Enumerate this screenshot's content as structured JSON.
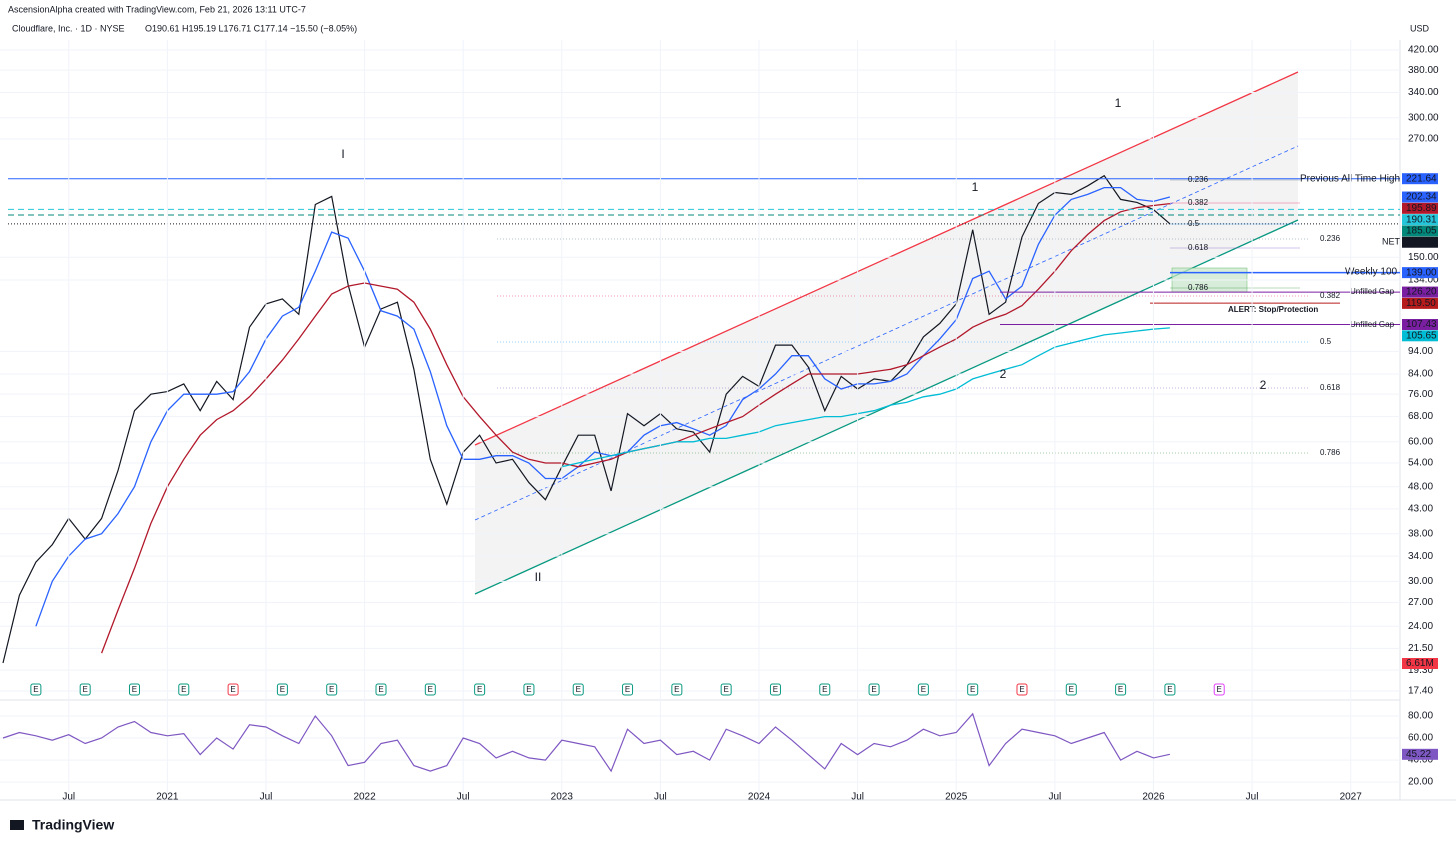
{
  "header": {
    "attribution": "AscensionAlpha created with TradingView.com, Feb 21, 2026 13:11 UTC-7",
    "symbol_line": "Cloudflare, Inc. · 1D · NYSE",
    "ohlc": "O190.61 H195.19 L176.71 C177.14 −15.50 (−8.05%)",
    "currency": "USD"
  },
  "brand": "TradingView",
  "chart_data": [
    {
      "type": "line",
      "log_scale": true,
      "x": [
        "2020-03",
        "2020-04",
        "2020-05",
        "2020-06",
        "2020-07",
        "2020-08",
        "2020-09",
        "2020-10",
        "2020-11",
        "2020-12",
        "2021-01",
        "2021-02",
        "2021-03",
        "2021-04",
        "2021-05",
        "2021-06",
        "2021-07",
        "2021-08",
        "2021-09",
        "2021-10",
        "2021-11",
        "2021-12",
        "2022-01",
        "2022-02",
        "2022-03",
        "2022-04",
        "2022-05",
        "2022-06",
        "2022-07",
        "2022-08",
        "2022-09",
        "2022-10",
        "2022-11",
        "2022-12",
        "2023-01",
        "2023-02",
        "2023-03",
        "2023-04",
        "2023-05",
        "2023-06",
        "2023-07",
        "2023-08",
        "2023-09",
        "2023-10",
        "2023-11",
        "2023-12",
        "2024-01",
        "2024-02",
        "2024-03",
        "2024-04",
        "2024-05",
        "2024-06",
        "2024-07",
        "2024-08",
        "2024-09",
        "2024-10",
        "2024-11",
        "2024-12",
        "2025-01",
        "2025-02",
        "2025-03",
        "2025-04",
        "2025-05",
        "2025-06",
        "2025-07",
        "2025-08",
        "2025-09",
        "2025-10",
        "2025-11",
        "2025-12",
        "2026-01",
        "2026-02"
      ],
      "xlim": [
        "2020-03",
        "2027-04"
      ],
      "ylim": [
        17.4,
        420
      ],
      "yticks": [
        {
          "value": 420,
          "label": "420.00"
        },
        {
          "value": 380,
          "label": "380.00"
        },
        {
          "value": 340,
          "label": "340.00"
        },
        {
          "value": 300,
          "label": "300.00"
        },
        {
          "value": 270,
          "label": "270.00"
        },
        {
          "value": 150,
          "label": "150.00"
        },
        {
          "value": 134,
          "label": "134.00"
        },
        {
          "value": 94,
          "label": "94.00"
        },
        {
          "value": 84,
          "label": "84.00"
        },
        {
          "value": 76,
          "label": "76.00"
        },
        {
          "value": 68,
          "label": "68.00"
        },
        {
          "value": 60,
          "label": "60.00"
        },
        {
          "value": 54,
          "label": "54.00"
        },
        {
          "value": 48,
          "label": "48.00"
        },
        {
          "value": 43,
          "label": "43.00"
        },
        {
          "value": 38,
          "label": "38.00"
        },
        {
          "value": 34,
          "label": "34.00"
        },
        {
          "value": 30,
          "label": "30.00"
        },
        {
          "value": 27,
          "label": "27.00"
        },
        {
          "value": 24,
          "label": "24.00"
        },
        {
          "value": 21.5,
          "label": "21.50"
        },
        {
          "value": 19.3,
          "label": "19.30"
        },
        {
          "value": 17.4,
          "label": "17.40"
        }
      ],
      "series": [
        {
          "name": "NET",
          "color": "#131722",
          "values": [
            20,
            28,
            33,
            36,
            41,
            37,
            41,
            52,
            70,
            76,
            77,
            80,
            70,
            81,
            74,
            106,
            119,
            122,
            113,
            195,
            203,
            131,
            96,
            116,
            120,
            86,
            55,
            44,
            57,
            62,
            54,
            55,
            49,
            45,
            53,
            62,
            62,
            47,
            69,
            65,
            69,
            64,
            63,
            57,
            76,
            83,
            79,
            97,
            97,
            87,
            70,
            83,
            78,
            82,
            81,
            88,
            101,
            108,
            119,
            172,
            113,
            120,
            166,
            196,
            207,
            205,
            214,
            225,
            200,
            197,
            190,
            177.14
          ]
        },
        {
          "color": "#2962ff",
          "values": [
            null,
            null,
            24,
            30,
            34,
            37,
            38,
            42,
            48,
            60,
            70,
            76,
            76,
            76,
            77,
            85,
            100,
            112,
            117,
            140,
            170,
            165,
            140,
            115,
            112,
            105,
            85,
            65,
            55,
            55,
            56,
            56,
            54,
            50,
            50,
            53,
            57,
            56,
            57,
            62,
            65,
            66,
            64,
            62,
            65,
            74,
            78,
            84,
            92,
            92,
            82,
            78,
            80,
            80,
            81,
            84,
            92,
            100,
            110,
            135,
            140,
            122,
            130,
            160,
            185,
            200,
            205,
            212,
            212,
            200,
            198,
            202.34
          ]
        },
        {
          "color": "#b2182b",
          "values": [
            null,
            null,
            null,
            null,
            null,
            null,
            21,
            26,
            32,
            40,
            48,
            55,
            62,
            67,
            70,
            75,
            82,
            90,
            100,
            112,
            125,
            130,
            132,
            130,
            128,
            120,
            105,
            88,
            75,
            68,
            62,
            57,
            55,
            54,
            54,
            53,
            54,
            55,
            57,
            58,
            59,
            60,
            62,
            64,
            66,
            68,
            72,
            76,
            80,
            84,
            84,
            84,
            84,
            85,
            86,
            88,
            92,
            96,
            100,
            106,
            110,
            113,
            118,
            128,
            140,
            155,
            168,
            180,
            188,
            192,
            194,
            195.89
          ]
        },
        {
          "color": "#00bcd4",
          "values": [
            null,
            null,
            null,
            null,
            null,
            null,
            null,
            null,
            null,
            null,
            null,
            null,
            null,
            null,
            null,
            null,
            null,
            null,
            null,
            null,
            null,
            null,
            null,
            null,
            null,
            null,
            null,
            null,
            null,
            null,
            null,
            null,
            null,
            null,
            53,
            54,
            55,
            56,
            57,
            58,
            59,
            60,
            60,
            61,
            61,
            62,
            63,
            65,
            66,
            67,
            68,
            68,
            69,
            70,
            72,
            73,
            75,
            76,
            78,
            82,
            84,
            86,
            88,
            92,
            96,
            98,
            100,
            102,
            103,
            104,
            105,
            105.65
          ]
        }
      ],
      "levels": [
        {
          "label": "Previous All Time High",
          "price": 221.64,
          "color": "#2962ff"
        },
        {
          "label": "Weekly 100",
          "price": {
            "value": 139,
            "label": "139.00"
          },
          "color": "#2962ff"
        },
        {
          "label": "Unfilled Gap",
          "price": {
            "value": 126.2,
            "label": "126.20"
          },
          "color": "#7b1fa2"
        },
        {
          "label": "ALERT: Stop/Protection",
          "price": {
            "value": 119.5,
            "label": "119.50"
          },
          "color": "#b71c1c"
        },
        {
          "label": "Unfilled Gap",
          "price": {
            "value": 107.43,
            "label": "107.43"
          },
          "color": "#7b1fa2"
        }
      ],
      "price_tags": [
        {
          "value": 190.31,
          "color": "#26c6da"
        },
        {
          "value": 185.05,
          "color": "#00897b"
        }
      ],
      "fib_levels": [
        {
          "value": 0.236,
          "color": "#607d8b"
        },
        {
          "value": 0.382,
          "color": "#e91e63"
        },
        {
          "value": 0.5,
          "color": "#2196f3"
        },
        {
          "value": 0.618,
          "color": "#7e57c2"
        },
        {
          "value": 0.786,
          "color": "#388e3c"
        }
      ],
      "annotations": [
        {
          "text": "I",
          "color": "#089981"
        },
        {
          "text": "II",
          "color": "#089981"
        },
        {
          "text": "1",
          "color": "#43a047"
        },
        {
          "text": "2",
          "color": "#089981"
        },
        {
          "text": "1",
          "color": "#f23645"
        },
        {
          "text": "2",
          "color": "#f23645"
        }
      ],
      "volume_last": {
        "value": 6610000,
        "label": "6.61M"
      },
      "earnings_label": "E",
      "earnings": [
        "2020-05",
        "2020-08",
        "2020-11",
        "2021-02",
        "2021-05",
        "2021-08",
        "2021-11",
        "2022-02",
        "2022-05",
        "2022-08",
        "2022-11",
        "2023-02",
        "2023-05",
        "2023-08",
        "2023-11",
        "2024-02",
        "2024-05",
        "2024-08",
        "2024-11",
        "2025-02",
        "2025-05",
        "2025-08",
        "2025-11",
        "2026-02",
        "2026-05"
      ],
      "earnings_colors": [
        "#089981",
        "#089981",
        "#089981",
        "#089981",
        "#f23645",
        "#089981",
        "#089981",
        "#089981",
        "#089981",
        "#089981",
        "#089981",
        "#089981",
        "#089981",
        "#089981",
        "#089981",
        "#089981",
        "#089981",
        "#089981",
        "#089981",
        "#089981",
        "#f23645",
        "#089981",
        "#089981",
        "#089981",
        "#e040fb"
      ]
    },
    {
      "type": "line",
      "x": [
        "2020-03",
        "2020-04",
        "2020-05",
        "2020-06",
        "2020-07",
        "2020-08",
        "2020-09",
        "2020-10",
        "2020-11",
        "2020-12",
        "2021-01",
        "2021-02",
        "2021-03",
        "2021-04",
        "2021-05",
        "2021-06",
        "2021-07",
        "2021-08",
        "2021-09",
        "2021-10",
        "2021-11",
        "2021-12",
        "2022-01",
        "2022-02",
        "2022-03",
        "2022-04",
        "2022-05",
        "2022-06",
        "2022-07",
        "2022-08",
        "2022-09",
        "2022-10",
        "2022-11",
        "2022-12",
        "2023-01",
        "2023-02",
        "2023-03",
        "2023-04",
        "2023-05",
        "2023-06",
        "2023-07",
        "2023-08",
        "2023-09",
        "2023-10",
        "2023-11",
        "2023-12",
        "2024-01",
        "2024-02",
        "2024-03",
        "2024-04",
        "2024-05",
        "2024-06",
        "2024-07",
        "2024-08",
        "2024-09",
        "2024-10",
        "2024-11",
        "2024-12",
        "2025-01",
        "2025-02",
        "2025-03",
        "2025-04",
        "2025-05",
        "2025-06",
        "2025-07",
        "2025-08",
        "2025-09",
        "2025-10",
        "2025-11",
        "2025-12",
        "2026-01",
        "2026-02"
      ],
      "xlim": [
        "2020-03",
        "2027-04"
      ],
      "xticks": [
        {
          "value": "2020-07",
          "label": "Jul"
        },
        {
          "value": "2021-01",
          "label": "2021"
        },
        {
          "value": "2021-07",
          "label": "Jul"
        },
        {
          "value": "2022-01",
          "label": "2022"
        },
        {
          "value": "2022-07",
          "label": "Jul"
        },
        {
          "value": "2023-01",
          "label": "2023"
        },
        {
          "value": "2023-07",
          "label": "Jul"
        },
        {
          "value": "2024-01",
          "label": "2024"
        },
        {
          "value": "2024-07",
          "label": "Jul"
        },
        {
          "value": "2025-01",
          "label": "2025"
        },
        {
          "value": "2025-07",
          "label": "Jul"
        },
        {
          "value": "2026-01",
          "label": "2026"
        },
        {
          "value": "2026-07",
          "label": "Jul"
        },
        {
          "value": "2027-01",
          "label": "2027"
        }
      ],
      "ylim": [
        11,
        90
      ],
      "yticks": [
        {
          "value": 80,
          "label": "80.00"
        },
        {
          "value": 60,
          "label": "60.00"
        },
        {
          "value": 40,
          "label": "40.00"
        },
        {
          "value": 20,
          "label": "20.00"
        }
      ],
      "series": [
        {
          "color": "#7e57c2",
          "values": [
            60,
            65,
            62,
            58,
            63,
            55,
            60,
            70,
            75,
            65,
            62,
            64,
            45,
            60,
            50,
            72,
            70,
            62,
            55,
            80,
            62,
            35,
            38,
            55,
            58,
            35,
            30,
            35,
            60,
            55,
            42,
            48,
            42,
            40,
            58,
            55,
            52,
            30,
            68,
            55,
            58,
            45,
            48,
            40,
            68,
            62,
            55,
            70,
            58,
            45,
            32,
            55,
            45,
            55,
            52,
            58,
            68,
            62,
            65,
            82,
            35,
            55,
            68,
            65,
            62,
            55,
            60,
            65,
            40,
            48,
            42,
            45.22
          ]
        }
      ]
    }
  ]
}
